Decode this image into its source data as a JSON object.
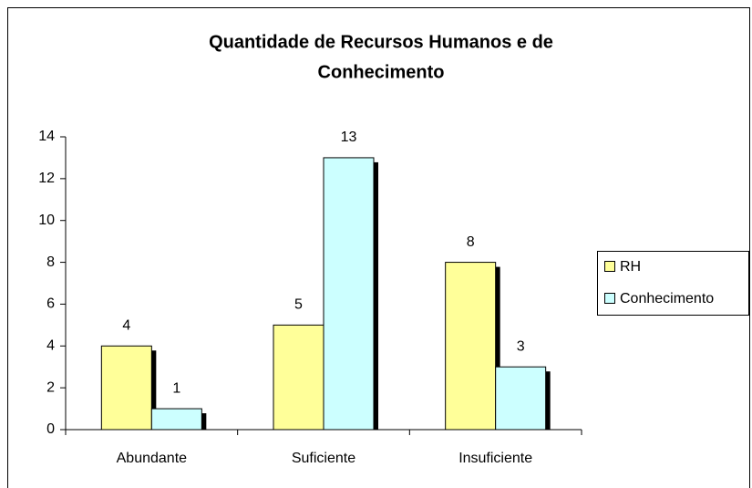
{
  "chart_data": {
    "type": "bar",
    "title": [
      "Quantidade de Recursos Humanos e de",
      "Conhecimento"
    ],
    "categories": [
      "Abundante",
      "Suficiente",
      "Insuficiente"
    ],
    "series": [
      {
        "name": "RH",
        "color": "#ffff99",
        "values": [
          4,
          5,
          8
        ]
      },
      {
        "name": "Conhecimento",
        "color": "#ccffff",
        "values": [
          1,
          13,
          3
        ]
      }
    ],
    "ylim": [
      0,
      14
    ],
    "yticks": [
      0,
      2,
      4,
      6,
      8,
      10,
      12,
      14
    ],
    "legend": "right"
  }
}
